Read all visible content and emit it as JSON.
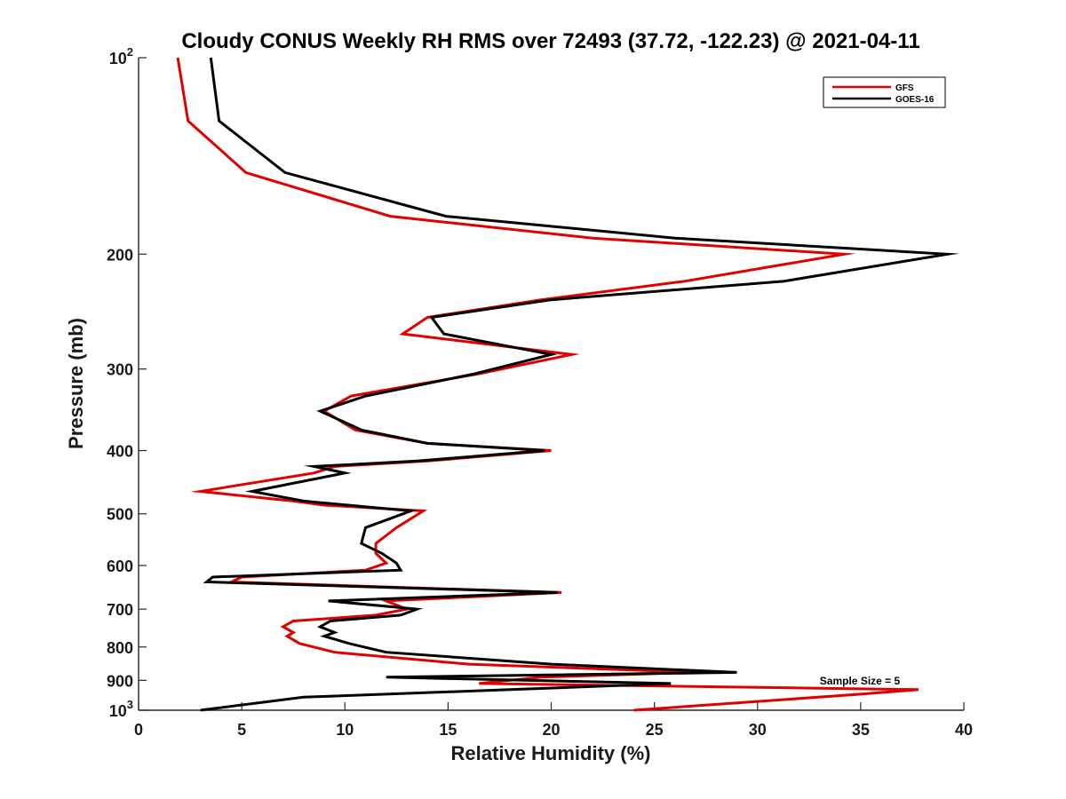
{
  "chart_data": {
    "type": "line",
    "title": "Cloudy CONUS Weekly RH RMS over 72493 (37.72, -122.23) @ 2021-04-11",
    "xlabel": "Relative Humidity (%)",
    "ylabel": "Pressure (mb)",
    "xlim": [
      0,
      40
    ],
    "ylim": [
      100,
      1000
    ],
    "y_scale": "log",
    "y_reversed": true,
    "grid": false,
    "legend_placement": "top-right",
    "x_ticks": [
      "0",
      "5",
      "10",
      "15",
      "20",
      "25",
      "30",
      "35",
      "40"
    ],
    "y_tick_values": [
      100,
      200,
      300,
      400,
      500,
      600,
      700,
      800,
      900,
      1000
    ],
    "y_tick_labels": [
      {
        "base": "10",
        "sup": "2"
      },
      {
        "base": "200"
      },
      {
        "base": "300"
      },
      {
        "base": "400"
      },
      {
        "base": "500"
      },
      {
        "base": "600"
      },
      {
        "base": "700"
      },
      {
        "base": "800"
      },
      {
        "base": "900"
      },
      {
        "base": "10",
        "sup": "3"
      }
    ],
    "series": [
      {
        "name": "GFS",
        "color": "#e00000",
        "points": [
          [
            1.9,
            100
          ],
          [
            2.4,
            125
          ],
          [
            5.2,
            150
          ],
          [
            12.2,
            175
          ],
          [
            22.0,
            189
          ],
          [
            34.2,
            200
          ],
          [
            26.5,
            220
          ],
          [
            19.5,
            235
          ],
          [
            14.0,
            250
          ],
          [
            12.8,
            265
          ],
          [
            21.0,
            285
          ],
          [
            16.5,
            305
          ],
          [
            10.3,
            330
          ],
          [
            9.0,
            348
          ],
          [
            10.5,
            372
          ],
          [
            14.0,
            390
          ],
          [
            20.0,
            400
          ],
          [
            14.0,
            415
          ],
          [
            9.5,
            423
          ],
          [
            8.5,
            433
          ],
          [
            3.0,
            462
          ],
          [
            7.5,
            478
          ],
          [
            9.0,
            485
          ],
          [
            13.8,
            495
          ],
          [
            12.5,
            525
          ],
          [
            11.5,
            555
          ],
          [
            11.5,
            575
          ],
          [
            12.0,
            595
          ],
          [
            11.0,
            610
          ],
          [
            5.0,
            625
          ],
          [
            4.5,
            636
          ],
          [
            20.5,
            660
          ],
          [
            12.0,
            680
          ],
          [
            13.0,
            700
          ],
          [
            11.5,
            715
          ],
          [
            7.5,
            730
          ],
          [
            7.0,
            745
          ],
          [
            7.5,
            760
          ],
          [
            7.2,
            770
          ],
          [
            7.8,
            790
          ],
          [
            9.5,
            815
          ],
          [
            16.0,
            850
          ],
          [
            27.0,
            875
          ],
          [
            19.5,
            890
          ],
          [
            16.5,
            910
          ],
          [
            37.8,
            930
          ],
          [
            35.0,
            945
          ],
          [
            24.0,
            1000
          ]
        ]
      },
      {
        "name": "GOES-16",
        "color": "#000000",
        "points": [
          [
            3.5,
            100
          ],
          [
            3.9,
            125
          ],
          [
            7.1,
            150
          ],
          [
            14.9,
            175
          ],
          [
            26.0,
            189
          ],
          [
            39.2,
            200
          ],
          [
            31.3,
            220
          ],
          [
            20.0,
            235
          ],
          [
            14.2,
            250
          ],
          [
            14.8,
            265
          ],
          [
            20.0,
            285
          ],
          [
            16.3,
            305
          ],
          [
            11.0,
            330
          ],
          [
            8.8,
            348
          ],
          [
            10.8,
            372
          ],
          [
            14.0,
            390
          ],
          [
            19.7,
            400
          ],
          [
            13.5,
            415
          ],
          [
            8.5,
            423
          ],
          [
            10.0,
            433
          ],
          [
            5.5,
            462
          ],
          [
            8.0,
            478
          ],
          [
            13.2,
            495
          ],
          [
            11.0,
            525
          ],
          [
            10.8,
            555
          ],
          [
            11.8,
            575
          ],
          [
            12.5,
            595
          ],
          [
            12.7,
            610
          ],
          [
            3.6,
            625
          ],
          [
            3.3,
            636
          ],
          [
            20.3,
            660
          ],
          [
            9.2,
            680
          ],
          [
            13.5,
            700
          ],
          [
            12.7,
            715
          ],
          [
            9.3,
            730
          ],
          [
            8.8,
            745
          ],
          [
            9.5,
            760
          ],
          [
            9.0,
            770
          ],
          [
            10.2,
            790
          ],
          [
            12.0,
            815
          ],
          [
            20.0,
            850
          ],
          [
            29.0,
            875
          ],
          [
            12.0,
            890
          ],
          [
            25.8,
            910
          ],
          [
            18.0,
            930
          ],
          [
            8.0,
            955
          ],
          [
            3.0,
            1000
          ]
        ]
      }
    ],
    "annotation": "Sample Size = 5"
  }
}
